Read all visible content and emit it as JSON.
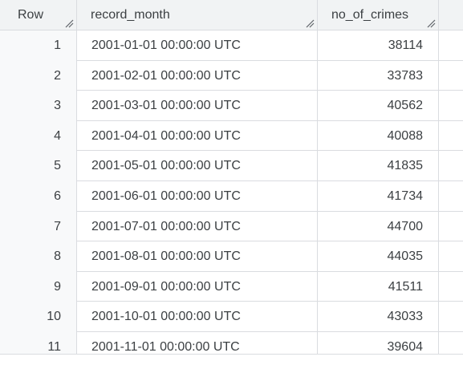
{
  "table": {
    "columns": [
      {
        "label": "Row"
      },
      {
        "label": "record_month"
      },
      {
        "label": "no_of_crimes"
      }
    ],
    "rows": [
      {
        "row": "1",
        "record_month": "2001-01-01 00:00:00 UTC",
        "no_of_crimes": "38114"
      },
      {
        "row": "2",
        "record_month": "2001-02-01 00:00:00 UTC",
        "no_of_crimes": "33783"
      },
      {
        "row": "3",
        "record_month": "2001-03-01 00:00:00 UTC",
        "no_of_crimes": "40562"
      },
      {
        "row": "4",
        "record_month": "2001-04-01 00:00:00 UTC",
        "no_of_crimes": "40088"
      },
      {
        "row": "5",
        "record_month": "2001-05-01 00:00:00 UTC",
        "no_of_crimes": "41835"
      },
      {
        "row": "6",
        "record_month": "2001-06-01 00:00:00 UTC",
        "no_of_crimes": "41734"
      },
      {
        "row": "7",
        "record_month": "2001-07-01 00:00:00 UTC",
        "no_of_crimes": "44700"
      },
      {
        "row": "8",
        "record_month": "2001-08-01 00:00:00 UTC",
        "no_of_crimes": "44035"
      },
      {
        "row": "9",
        "record_month": "2001-09-01 00:00:00 UTC",
        "no_of_crimes": "41511"
      },
      {
        "row": "10",
        "record_month": "2001-10-01 00:00:00 UTC",
        "no_of_crimes": "43033"
      },
      {
        "row": "11",
        "record_month": "2001-11-01 00:00:00 UTC",
        "no_of_crimes": "39604"
      }
    ]
  },
  "colors": {
    "header_bg": "#f1f3f4",
    "grid_line": "#dadce0",
    "row_number_bg": "#f8f9fa",
    "text": "#3c4043"
  }
}
